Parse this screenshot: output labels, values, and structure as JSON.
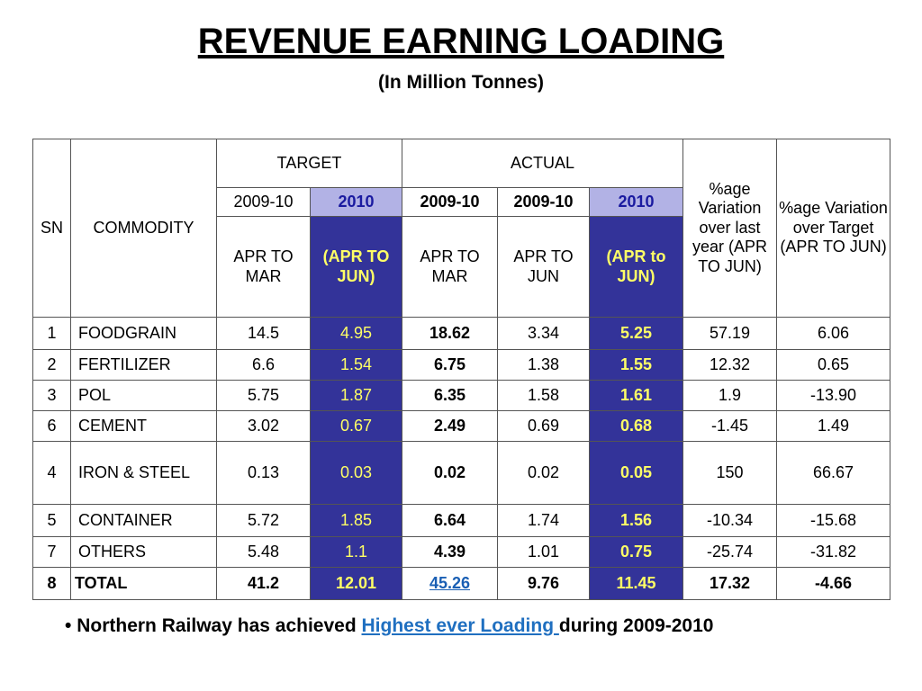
{
  "title": "REVENUE EARNING LOADING",
  "subtitle": "(In Million Tonnes)",
  "headers": {
    "sn": "SN",
    "commodity": "COMMODITY",
    "target": "TARGET",
    "actual": "ACTUAL",
    "var_last_year": "%age Variation over last year (APR TO JUN)",
    "var_target": "%age Variation over Target (APR TO JUN)",
    "years": [
      "2009-10",
      "2010",
      "2009-10",
      "2009-10",
      "2010"
    ],
    "periods": [
      "APR TO MAR",
      "(APR TO JUN)",
      "APR TO MAR",
      "APR TO JUN",
      "(APR to JUN)"
    ]
  },
  "rows": [
    {
      "sn": "1",
      "commodity": "FOODGRAIN",
      "t0910": "14.5",
      "t2010": "4.95",
      "a0910": "18.62",
      "a0910jun": "3.34",
      "a2010": "5.25",
      "vly": "57.19",
      "vt": "6.06"
    },
    {
      "sn": "2",
      "commodity": "FERTILIZER",
      "t0910": "6.6",
      "t2010": "1.54",
      "a0910": "6.75",
      "a0910jun": "1.38",
      "a2010": "1.55",
      "vly": "12.32",
      "vt": "0.65"
    },
    {
      "sn": "3",
      "commodity": "POL",
      "t0910": "5.75",
      "t2010": "1.87",
      "a0910": "6.35",
      "a0910jun": "1.58",
      "a2010": "1.61",
      "vly": "1.9",
      "vt": "-13.90"
    },
    {
      "sn": "6",
      "commodity": "CEMENT",
      "t0910": "3.02",
      "t2010": "0.67",
      "a0910": "2.49",
      "a0910jun": "0.69",
      "a2010": "0.68",
      "vly": "-1.45",
      "vt": "1.49"
    },
    {
      "sn": "4",
      "commodity": "IRON & STEEL",
      "t0910": "0.13",
      "t2010": "0.03",
      "a0910": "0.02",
      "a0910jun": "0.02",
      "a2010": "0.05",
      "vly": "150",
      "vt": "66.67"
    },
    {
      "sn": "5",
      "commodity": "CONTAINER",
      "t0910": "5.72",
      "t2010": "1.85",
      "a0910": "6.64",
      "a0910jun": "1.74",
      "a2010": "1.56",
      "vly": "-10.34",
      "vt": "-15.68"
    },
    {
      "sn": "7",
      "commodity": "OTHERS",
      "t0910": "5.48",
      "t2010": "1.1",
      "a0910": "4.39",
      "a0910jun": "1.01",
      "a2010": "0.75",
      "vly": "-25.74",
      "vt": "-31.82"
    }
  ],
  "total": {
    "sn": "8",
    "commodity": "TOTAL",
    "t0910": "41.2",
    "t2010": "12.01",
    "a0910": "45.26",
    "a0910jun": "9.76",
    "a2010": "11.45",
    "vly": "17.32",
    "vt": "-4.66"
  },
  "note": {
    "bullet": "•",
    "prefix": "Northern Railway has achieved ",
    "link": "Highest ever Loading ",
    "suffix": "during 2009-2010"
  },
  "colors": {
    "highlight_bg": "#333399",
    "highlight_text": "#ffff66",
    "link": "#1f6fc0"
  }
}
